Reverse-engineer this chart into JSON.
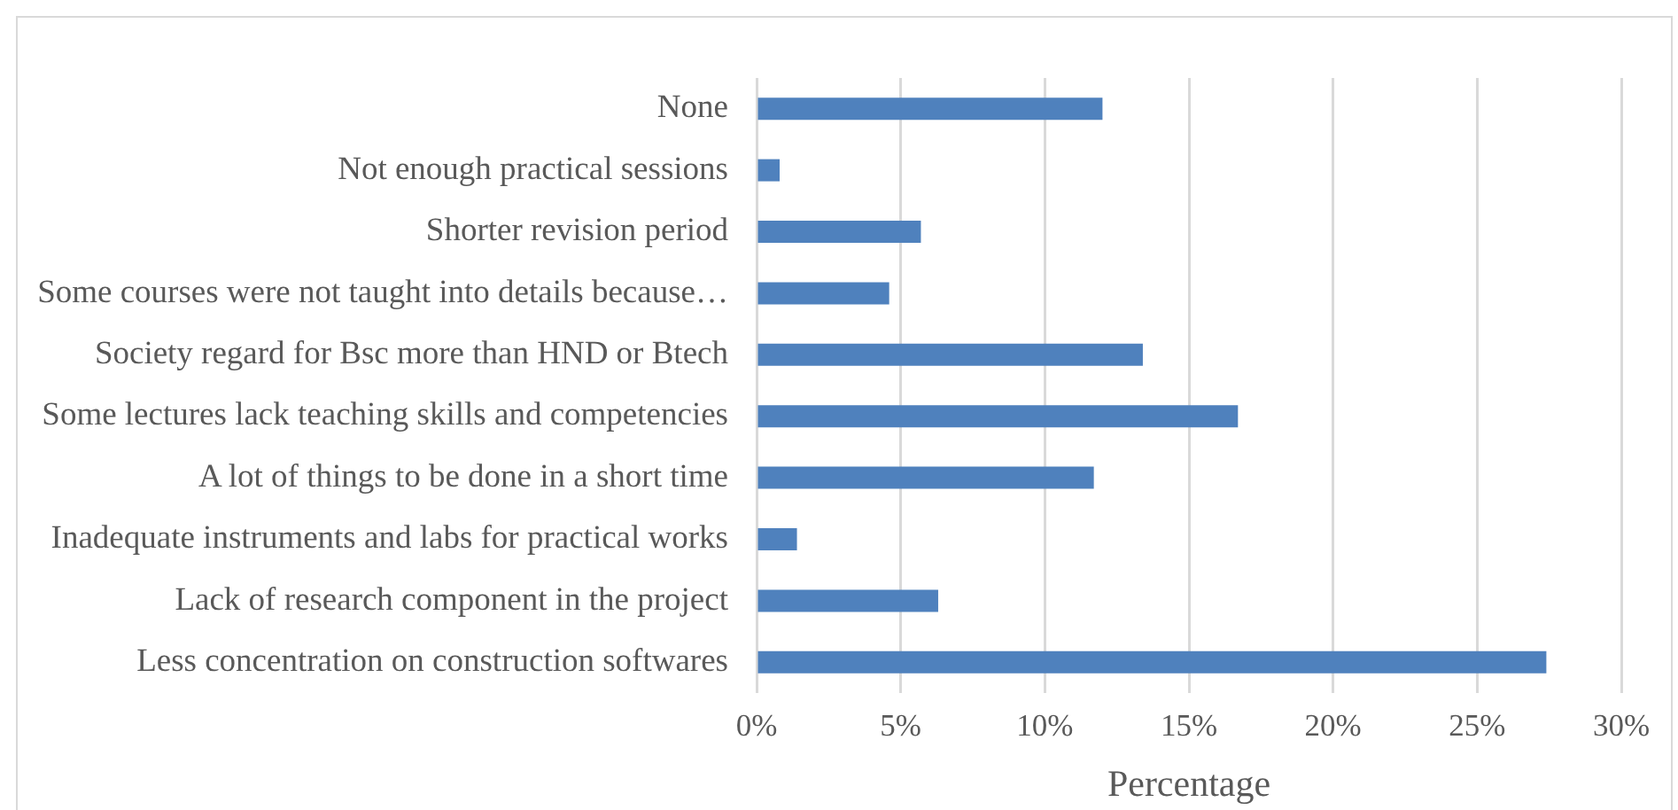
{
  "chart_data": {
    "type": "bar",
    "orientation": "horizontal",
    "categories": [
      "None",
      "Not enough practical sessions",
      "Shorter revision period",
      "Some courses were not taught into details because…",
      "Society regard for Bsc more than HND or Btech",
      "Some lectures lack teaching skills and competencies",
      "A lot of things to be done in a short time",
      "Inadequate instruments and labs for practical works",
      "Lack of research component in the project",
      "Less concentration on construction softwares"
    ],
    "values": [
      12.0,
      0.8,
      5.7,
      4.6,
      13.4,
      16.7,
      11.7,
      1.4,
      6.3,
      27.4
    ],
    "color": "#4f81bd",
    "xlabel": "Percentage",
    "xlim": [
      0,
      30
    ],
    "xticks": [
      {
        "value": 0,
        "label": "0%"
      },
      {
        "value": 5,
        "label": "5%"
      },
      {
        "value": 10,
        "label": "10%"
      },
      {
        "value": 15,
        "label": "15%"
      },
      {
        "value": 20,
        "label": "20%"
      },
      {
        "value": 25,
        "label": "25%"
      },
      {
        "value": 30,
        "label": "30%"
      }
    ],
    "grid": "x",
    "legend": false
  }
}
